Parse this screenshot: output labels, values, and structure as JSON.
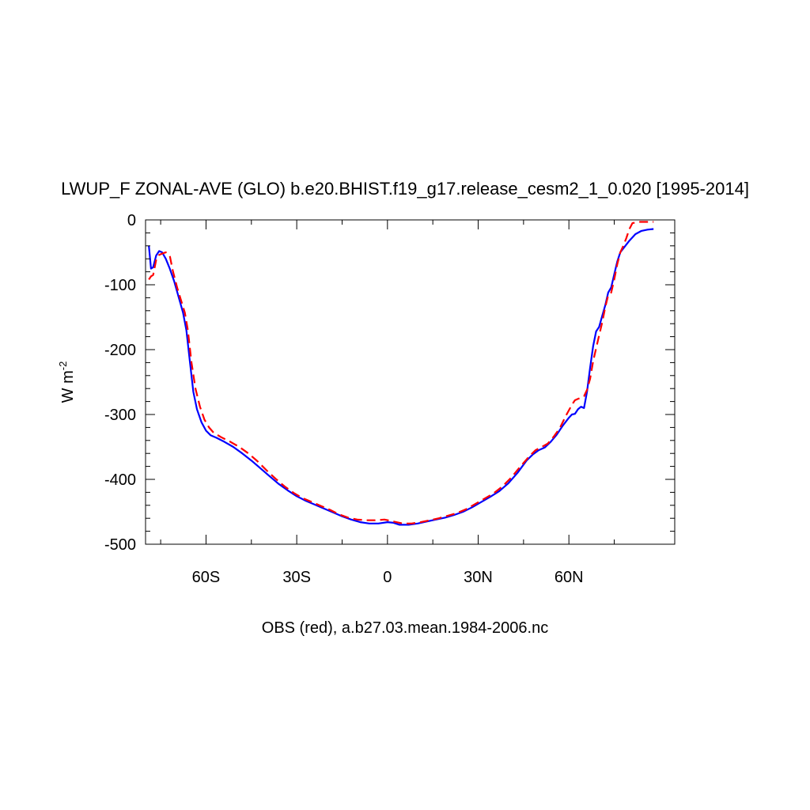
{
  "chart_data": {
    "type": "line",
    "title": "LWUP_F ZONAL-AVE (GLO) b.e20.BHIST.f19_g17.release_cesm2_1_0.020 [1995-2014]",
    "ylabel_main": "W m",
    "ylabel_sup": "-2",
    "xlabel": "OBS (red), a.b27.03.mean.1984-2006.nc",
    "xlim": [
      -80,
      95
    ],
    "ylim": [
      -500,
      0
    ],
    "x_ticks": [
      {
        "value": -60,
        "label": "60S"
      },
      {
        "value": -30,
        "label": "30S"
      },
      {
        "value": 0,
        "label": "0"
      },
      {
        "value": 30,
        "label": "30N"
      },
      {
        "value": 60,
        "label": "60N"
      }
    ],
    "y_ticks": [
      {
        "value": 0,
        "label": "0"
      },
      {
        "value": -100,
        "label": "-100"
      },
      {
        "value": -200,
        "label": "-200"
      },
      {
        "value": -300,
        "label": "-300"
      },
      {
        "value": -400,
        "label": "-400"
      },
      {
        "value": -500,
        "label": "-500"
      }
    ],
    "series": [
      {
        "color": "#0000ff",
        "style": "solid",
        "points": [
          [
            -78.9,
            -40
          ],
          [
            -78.2,
            -75
          ],
          [
            -77.5,
            -73
          ],
          [
            -76.5,
            -55
          ],
          [
            -75.5,
            -48
          ],
          [
            -74.5,
            -50
          ],
          [
            -73.3,
            -60
          ],
          [
            -72,
            -75
          ],
          [
            -70.5,
            -95
          ],
          [
            -69,
            -120
          ],
          [
            -67.6,
            -143
          ],
          [
            -66.5,
            -170
          ],
          [
            -65.3,
            -220
          ],
          [
            -64.2,
            -265
          ],
          [
            -63,
            -292
          ],
          [
            -61.5,
            -312
          ],
          [
            -60,
            -325
          ],
          [
            -58.5,
            -332
          ],
          [
            -56.5,
            -336
          ],
          [
            -54,
            -342
          ],
          [
            -51,
            -350
          ],
          [
            -48,
            -360
          ],
          [
            -45,
            -371
          ],
          [
            -42,
            -383
          ],
          [
            -39,
            -395
          ],
          [
            -36,
            -407
          ],
          [
            -33,
            -417
          ],
          [
            -30,
            -426
          ],
          [
            -27,
            -433
          ],
          [
            -24,
            -439
          ],
          [
            -21,
            -445
          ],
          [
            -18,
            -451
          ],
          [
            -15,
            -457
          ],
          [
            -12,
            -462
          ],
          [
            -9,
            -466
          ],
          [
            -6,
            -468
          ],
          [
            -3,
            -468
          ],
          [
            0,
            -466
          ],
          [
            2,
            -467
          ],
          [
            4,
            -470
          ],
          [
            7,
            -470
          ],
          [
            10,
            -468
          ],
          [
            13,
            -465
          ],
          [
            16,
            -462
          ],
          [
            19,
            -459
          ],
          [
            22,
            -455
          ],
          [
            25,
            -450
          ],
          [
            28,
            -443
          ],
          [
            31,
            -435
          ],
          [
            34,
            -427
          ],
          [
            37,
            -418
          ],
          [
            40,
            -406
          ],
          [
            43,
            -390
          ],
          [
            46,
            -371
          ],
          [
            48,
            -362
          ],
          [
            50,
            -355
          ],
          [
            52,
            -351
          ],
          [
            54,
            -342
          ],
          [
            56,
            -331
          ],
          [
            58,
            -317
          ],
          [
            60,
            -305
          ],
          [
            61,
            -300
          ],
          [
            62,
            -299
          ],
          [
            63,
            -292
          ],
          [
            64,
            -288
          ],
          [
            65,
            -290
          ],
          [
            66,
            -265
          ],
          [
            67,
            -228
          ],
          [
            68,
            -195
          ],
          [
            69,
            -172
          ],
          [
            70,
            -165
          ],
          [
            71,
            -148
          ],
          [
            72,
            -132
          ],
          [
            73,
            -112
          ],
          [
            74,
            -104
          ],
          [
            75,
            -84
          ],
          [
            76,
            -64
          ],
          [
            77,
            -50
          ],
          [
            78,
            -44
          ],
          [
            80,
            -32
          ],
          [
            82,
            -22
          ],
          [
            84,
            -17
          ],
          [
            86,
            -15
          ],
          [
            88,
            -14
          ]
        ]
      },
      {
        "color": "#ff0000",
        "style": "dashed",
        "points": [
          [
            -78.9,
            -92
          ],
          [
            -78.2,
            -87
          ],
          [
            -77.5,
            -85
          ],
          [
            -76.5,
            -62
          ],
          [
            -75.5,
            -54
          ],
          [
            -74.5,
            -52
          ],
          [
            -73.3,
            -50
          ],
          [
            -72,
            -55
          ],
          [
            -71,
            -78
          ],
          [
            -69.5,
            -105
          ],
          [
            -68,
            -128
          ],
          [
            -67,
            -143
          ],
          [
            -66,
            -170
          ],
          [
            -64.8,
            -220
          ],
          [
            -63.5,
            -260
          ],
          [
            -62,
            -288
          ],
          [
            -60.5,
            -308
          ],
          [
            -59,
            -320
          ],
          [
            -57.5,
            -328
          ],
          [
            -55,
            -335
          ],
          [
            -52,
            -342
          ],
          [
            -49,
            -350
          ],
          [
            -46,
            -360
          ],
          [
            -43,
            -372
          ],
          [
            -40,
            -386
          ],
          [
            -37,
            -399
          ],
          [
            -34,
            -411
          ],
          [
            -31,
            -421
          ],
          [
            -28,
            -429
          ],
          [
            -25,
            -435
          ],
          [
            -22,
            -441
          ],
          [
            -19,
            -447
          ],
          [
            -16,
            -454
          ],
          [
            -13,
            -459
          ],
          [
            -10,
            -462
          ],
          [
            -7,
            -463
          ],
          [
            -4,
            -463
          ],
          [
            -1,
            -462
          ],
          [
            2,
            -465
          ],
          [
            5,
            -468
          ],
          [
            8,
            -468
          ],
          [
            11,
            -466
          ],
          [
            14,
            -463
          ],
          [
            17,
            -460
          ],
          [
            20,
            -456
          ],
          [
            23,
            -452
          ],
          [
            26,
            -446
          ],
          [
            29,
            -438
          ],
          [
            32,
            -430
          ],
          [
            35,
            -422
          ],
          [
            38,
            -411
          ],
          [
            41,
            -397
          ],
          [
            44,
            -380
          ],
          [
            47,
            -364
          ],
          [
            49,
            -355
          ],
          [
            51,
            -350
          ],
          [
            53,
            -345
          ],
          [
            55,
            -334
          ],
          [
            57,
            -321
          ],
          [
            59,
            -302
          ],
          [
            61,
            -285
          ],
          [
            62,
            -278
          ],
          [
            63,
            -276
          ],
          [
            64,
            -274
          ],
          [
            65,
            -272
          ],
          [
            66,
            -262
          ],
          [
            67,
            -245
          ],
          [
            68,
            -218
          ],
          [
            69,
            -198
          ],
          [
            70,
            -178
          ],
          [
            71,
            -158
          ],
          [
            72,
            -135
          ],
          [
            73,
            -116
          ],
          [
            74,
            -112
          ],
          [
            75,
            -92
          ],
          [
            76,
            -68
          ],
          [
            77,
            -50
          ],
          [
            78,
            -40
          ],
          [
            79,
            -28
          ],
          [
            80,
            -14
          ],
          [
            81,
            -5
          ],
          [
            83,
            -3
          ],
          [
            86,
            -3
          ],
          [
            88,
            -3
          ]
        ]
      }
    ]
  }
}
